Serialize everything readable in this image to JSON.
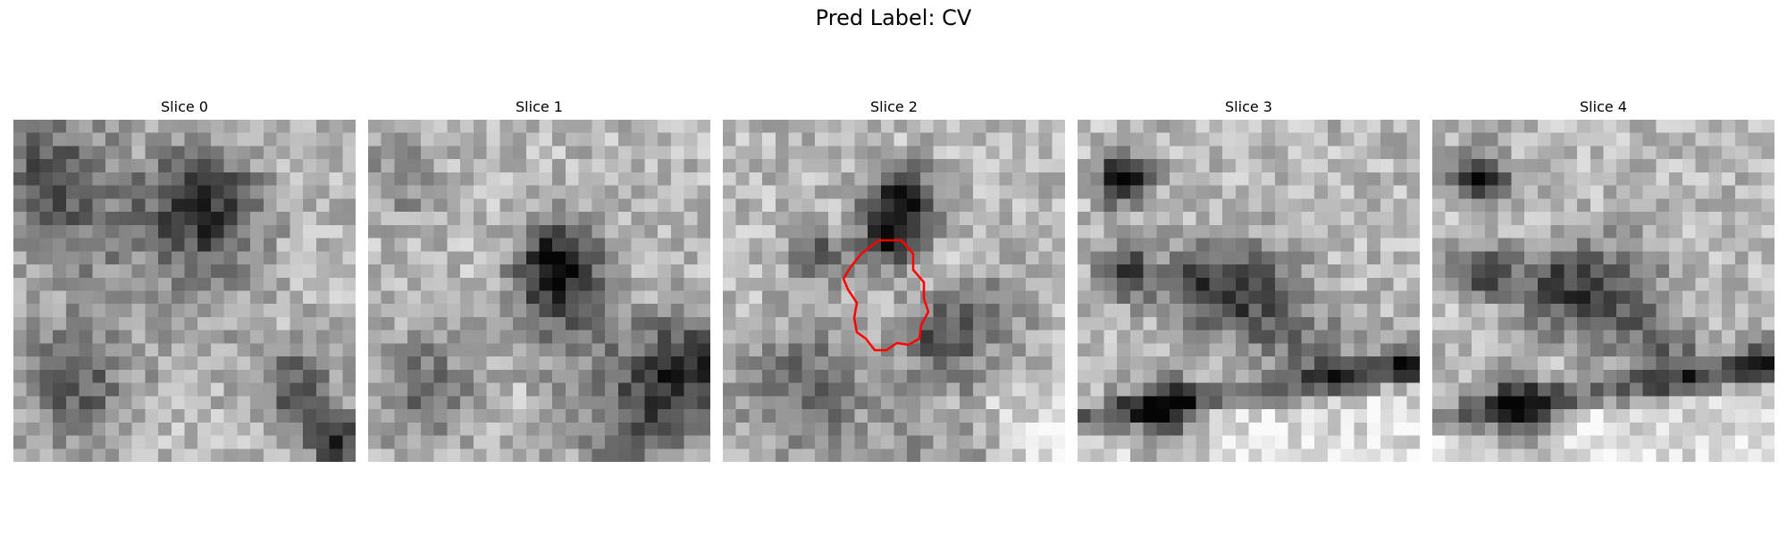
{
  "figure": {
    "suptitle": "Pred Label: CV",
    "grid_size": 26,
    "contour_color": "#ff0000"
  },
  "slices": [
    {
      "title": "Slice 0",
      "seed": 11,
      "has_contour": false
    },
    {
      "title": "Slice 1",
      "seed": 23,
      "has_contour": false
    },
    {
      "title": "Slice 2",
      "seed": 37,
      "has_contour": true
    },
    {
      "title": "Slice 3",
      "seed": 41,
      "has_contour": false
    },
    {
      "title": "Slice 4",
      "seed": 42,
      "has_contour": false
    }
  ]
}
